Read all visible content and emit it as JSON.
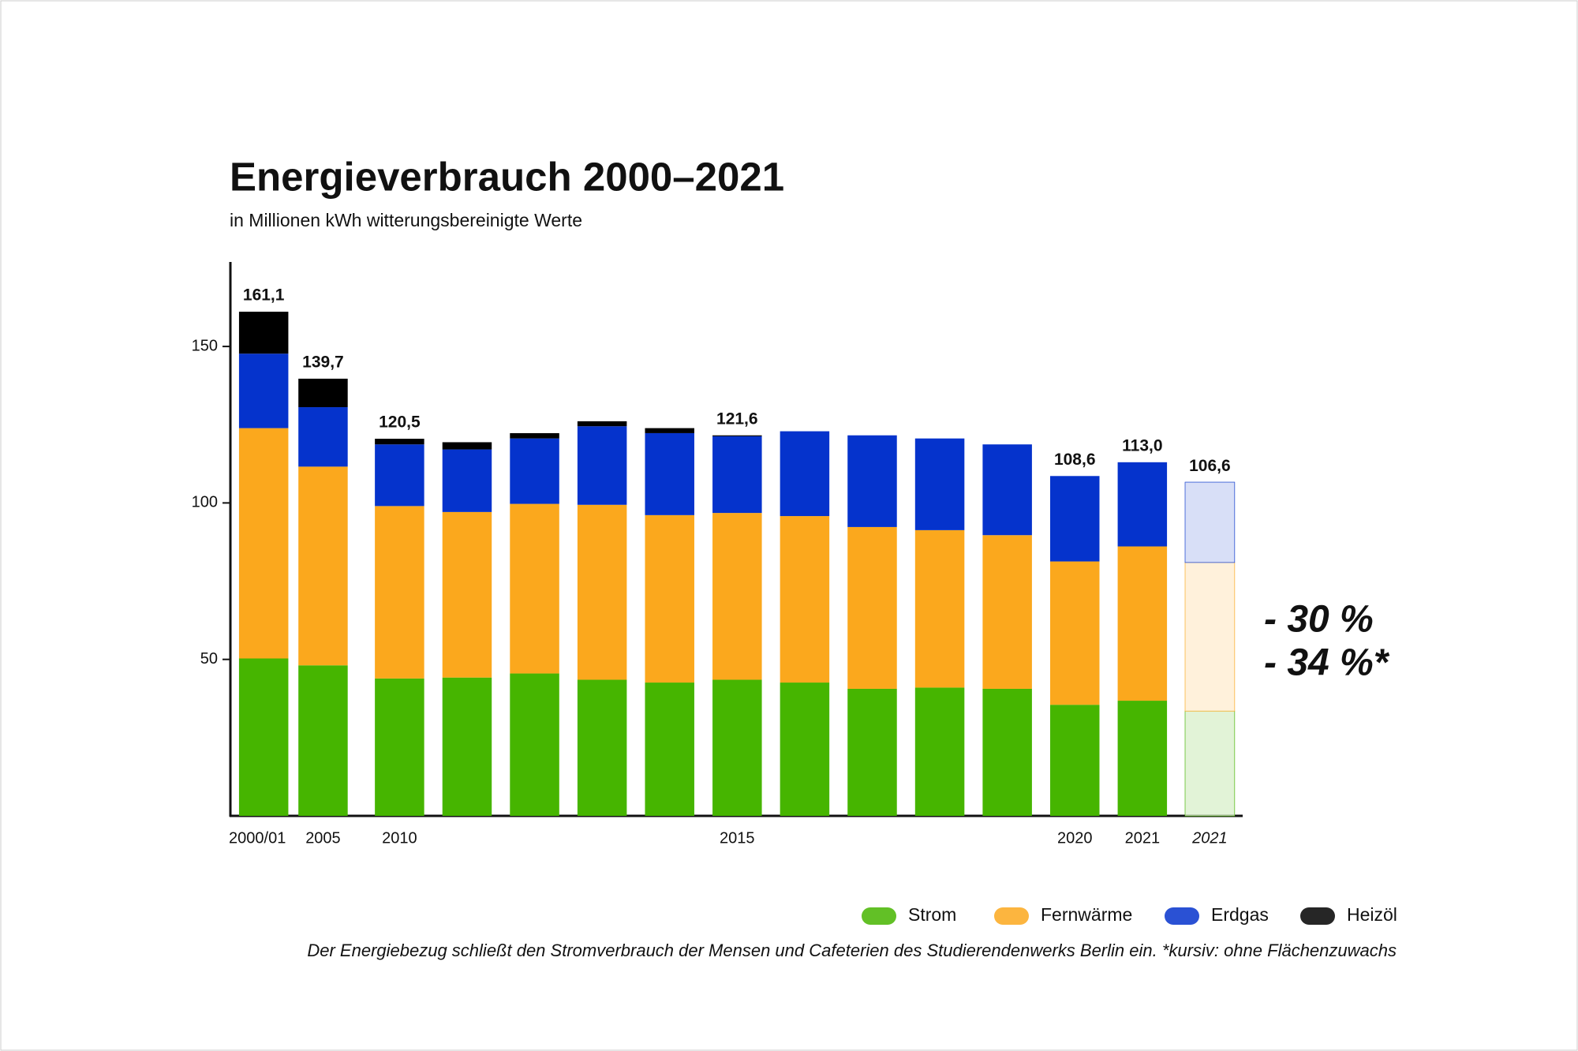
{
  "chart_data": {
    "type": "stacked_bar",
    "title": "Energieverbrauch 2000–2021",
    "subtitle": "in Millionen kWh witterungsbereinigte Werte",
    "categories": [
      "2000/01",
      "2005",
      "2010",
      null,
      null,
      null,
      null,
      "2015",
      null,
      null,
      null,
      null,
      "2020",
      "2021",
      "2021"
    ],
    "series": [
      {
        "name": "Strom",
        "color": "#46b500",
        "values": [
          50.3,
          48.1,
          43.9,
          44.2,
          45.5,
          43.5,
          42.6,
          43.5,
          42.6,
          40.6,
          41.0,
          40.6,
          35.5,
          36.8,
          33.5
        ]
      },
      {
        "name": "Fernwärme",
        "color": "#fba81d",
        "values": [
          73.6,
          63.5,
          55.1,
          52.9,
          54.2,
          55.9,
          53.5,
          53.3,
          53.2,
          51.7,
          50.3,
          49.1,
          45.8,
          49.3,
          47.5
        ]
      },
      {
        "name": "Erdgas",
        "color": "#0533cc",
        "values": [
          23.8,
          19.0,
          19.7,
          20.0,
          20.9,
          25.1,
          26.2,
          24.5,
          27.1,
          29.3,
          29.3,
          29.0,
          27.3,
          26.9,
          25.6
        ]
      },
      {
        "name": "Heizöl",
        "color": "#000000",
        "values": [
          13.4,
          9.1,
          1.8,
          2.3,
          1.7,
          1.6,
          1.6,
          0.3,
          null,
          null,
          null,
          null,
          null,
          null,
          null
        ]
      }
    ],
    "totals": {
      "values": [
        161.1,
        139.7,
        120.5,
        null,
        null,
        null,
        null,
        121.6,
        null,
        null,
        null,
        null,
        108.6,
        113.0,
        106.6
      ],
      "value_labels": [
        "161,1",
        "139,7",
        "120,5",
        null,
        null,
        null,
        null,
        "121,6",
        null,
        null,
        null,
        null,
        "108,6",
        "113,0",
        "106,6"
      ]
    },
    "hatched_index": 14,
    "ylim": [
      0,
      177
    ],
    "yticks": [
      50,
      100,
      150
    ],
    "legend": "bottom-right",
    "annotations": [
      "- 30 %",
      "- 34 %*"
    ],
    "footnote": "Der Energiebezug schließt den Stromverbrauch der Mensen und Cafeterien des Studierendenwerks Berlin ein. *kursiv: ohne Flächenzuwachs"
  }
}
